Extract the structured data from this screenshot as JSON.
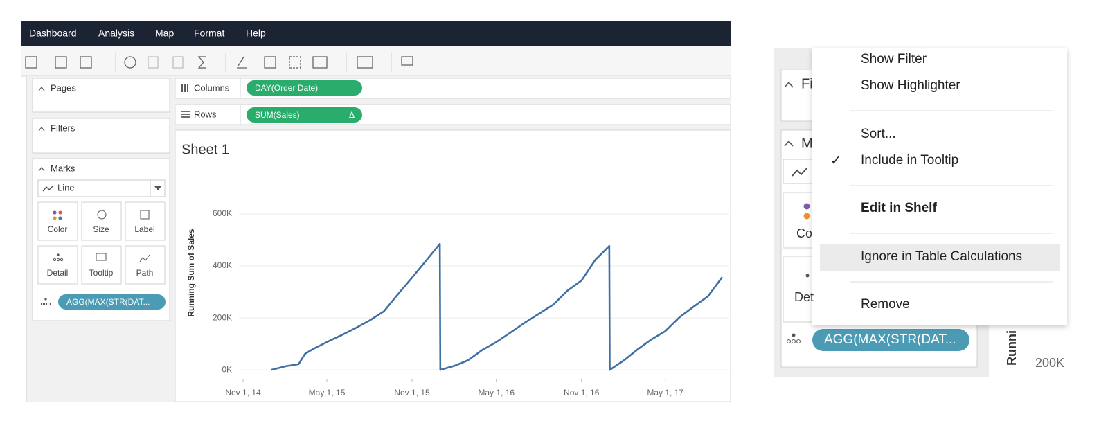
{
  "menu_bar": [
    "Dashboard",
    "Analysis",
    "Map",
    "Format",
    "Help"
  ],
  "cards": {
    "pages": "Pages",
    "filters": "Filters",
    "marks": "Marks",
    "mark_type": "Line",
    "mark_buttons": [
      "Color",
      "Size",
      "Label",
      "Detail",
      "Tooltip",
      "Path"
    ],
    "pill": "AGG(MAX(STR(DAT..."
  },
  "shelves": {
    "columns_label": "Columns",
    "columns_pill": "DAY(Order Date)",
    "rows_label": "Rows",
    "rows_pill": "SUM(Sales)",
    "rows_pill_flag": "Δ"
  },
  "chart_data": {
    "type": "line",
    "title": "Sheet 1",
    "y_label": "Running Sum of Sales",
    "color": "#3f6fa3",
    "grid": true,
    "x": [
      "2015-01-01",
      "2015-02-01",
      "2015-03-01",
      "2015-03-15",
      "2015-04-01",
      "2015-05-01",
      "2015-06-01",
      "2015-07-01",
      "2015-08-01",
      "2015-09-01",
      "2015-10-01",
      "2015-11-01",
      "2015-12-01",
      "2015-12-31",
      "2016-01-01",
      "2016-02-01",
      "2016-03-01",
      "2016-04-01",
      "2016-05-01",
      "2016-06-01",
      "2016-07-01",
      "2016-08-01",
      "2016-09-01",
      "2016-10-01",
      "2016-11-01",
      "2016-12-01",
      "2016-12-31",
      "2017-01-01",
      "2017-02-01",
      "2017-03-01",
      "2017-04-01",
      "2017-05-01",
      "2017-06-01",
      "2017-07-01",
      "2017-08-01",
      "2017-09-01"
    ],
    "values": [
      0,
      14000,
      22000,
      62000,
      80000,
      107000,
      133000,
      160000,
      190000,
      225000,
      290000,
      355000,
      420000,
      485000,
      0,
      16000,
      37000,
      77000,
      107000,
      144000,
      181000,
      216000,
      251000,
      304000,
      344000,
      424000,
      477000,
      0,
      37000,
      77000,
      117000,
      149000,
      203000,
      243000,
      283000,
      357000
    ],
    "xlim": [
      "2014-10-23",
      "2017-09-16"
    ],
    "xticks": [
      {
        "value": "2014-11-01",
        "label": "Nov 1, 14"
      },
      {
        "value": "2015-05-01",
        "label": "May 1, 15"
      },
      {
        "value": "2015-11-01",
        "label": "Nov 1, 15"
      },
      {
        "value": "2016-05-01",
        "label": "May 1, 16"
      },
      {
        "value": "2016-11-01",
        "label": "Nov 1, 16"
      },
      {
        "value": "2017-05-01",
        "label": "May 1, 17"
      }
    ],
    "ylim": [
      -37000,
      784000
    ],
    "yticks": [
      {
        "value": 0,
        "label": "0K"
      },
      {
        "value": 200000,
        "label": "200K"
      },
      {
        "value": 400000,
        "label": "400K"
      },
      {
        "value": 600000,
        "label": "600K"
      }
    ]
  },
  "zoom": {
    "menu": [
      "Show Filter",
      "Show Highlighter",
      "Sort...",
      "Include in Tooltip",
      "Edit in Shelf",
      "Ignore in Table Calculations",
      "Remove"
    ],
    "checkmark": "✓",
    "filters_fragment": "Fi",
    "marks_fragment": "M",
    "color_fragment": "Co",
    "detail_fragment": "Det",
    "pill": "AGG(MAX(STR(DAT...",
    "axis_fragment": "Runni",
    "tick_fragment": "200K"
  }
}
